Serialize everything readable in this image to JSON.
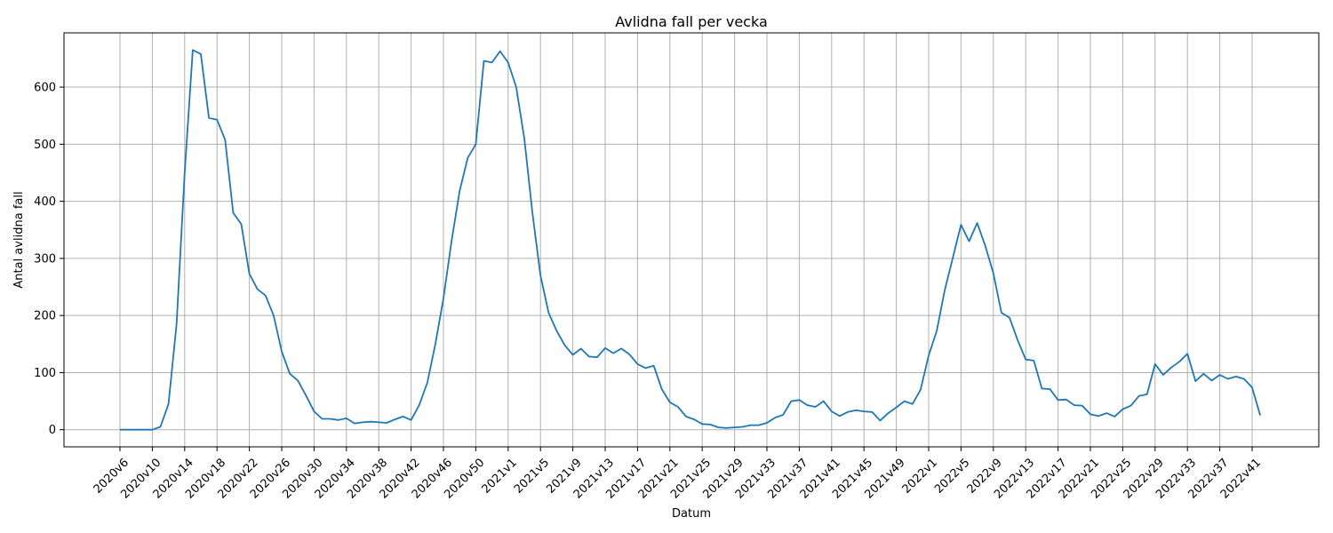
{
  "chart_data": {
    "type": "line",
    "title": "Avlidna fall per vecka",
    "xlabel": "Datum",
    "ylabel": "Antal avlidna fall",
    "ylim": [
      -30,
      695
    ],
    "grid": true,
    "x_tick_labels": [
      "2020v6",
      "2020v10",
      "2020v14",
      "2020v18",
      "2020v22",
      "2020v26",
      "2020v30",
      "2020v34",
      "2020v38",
      "2020v42",
      "2020v46",
      "2020v50",
      "2021v1",
      "2021v5",
      "2021v9",
      "2021v13",
      "2021v17",
      "2021v21",
      "2021v25",
      "2021v29",
      "2021v33",
      "2021v37",
      "2021v41",
      "2021v45",
      "2021v49",
      "2022v1",
      "2022v5",
      "2022v9",
      "2022v13",
      "2022v17",
      "2022v21",
      "2022v25",
      "2022v29",
      "2022v33",
      "2022v37",
      "2022v41"
    ],
    "y_ticks": [
      0,
      100,
      200,
      300,
      400,
      500,
      600
    ],
    "x_tick_every": 4,
    "series": [
      {
        "color": "#1f77b4",
        "values": [
          0,
          0,
          0,
          0,
          0,
          5,
          45,
          185,
          450,
          665,
          658,
          546,
          543,
          508,
          380,
          360,
          273,
          246,
          235,
          200,
          137,
          98,
          86,
          60,
          32,
          19,
          19,
          17,
          20,
          11,
          13,
          14,
          13,
          12,
          18,
          23,
          17,
          43,
          82,
          150,
          230,
          330,
          418,
          476,
          500,
          646,
          643,
          663,
          643,
          600,
          510,
          380,
          270,
          205,
          173,
          148,
          131,
          142,
          128,
          127,
          143,
          134,
          142,
          132,
          115,
          108,
          112,
          71,
          48,
          40,
          23,
          18,
          10,
          9,
          4,
          3,
          4,
          5,
          8,
          8,
          12,
          21,
          26,
          50,
          52,
          43,
          40,
          50,
          32,
          24,
          31,
          34,
          32,
          31,
          16,
          29,
          39,
          50,
          45,
          70,
          130,
          173,
          245,
          302,
          359,
          330,
          362,
          322,
          274,
          205,
          196,
          157,
          123,
          121,
          72,
          71,
          52,
          53,
          43,
          42,
          27,
          24,
          29,
          23,
          36,
          42,
          59,
          62,
          115,
          96,
          109,
          119,
          133,
          85,
          98,
          86,
          96,
          89,
          93,
          89,
          74,
          25
        ]
      }
    ]
  }
}
